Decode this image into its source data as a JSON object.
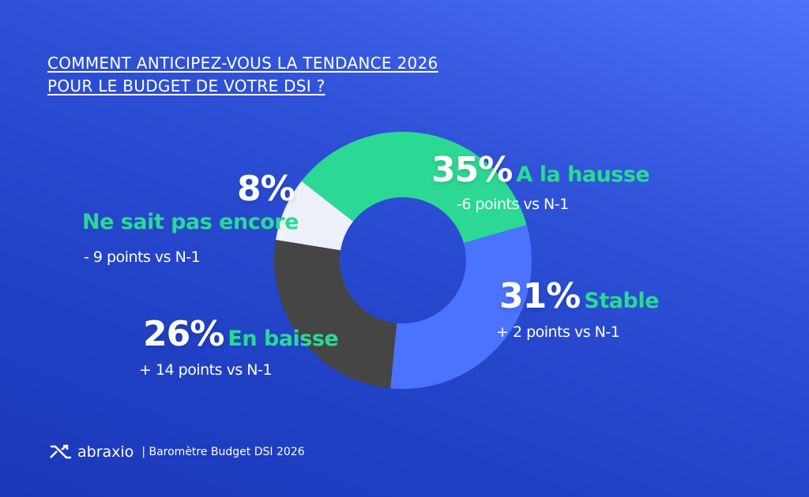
{
  "title": {
    "line1": "COMMENT ANTICIPEZ-VOUS LA TENDANCE 2026",
    "line2": "POUR LE BUDGET DE VOTRE DSI ?"
  },
  "chart_data": {
    "type": "pie",
    "donut": true,
    "slices": [
      {
        "label": "A la hausse",
        "value": 35,
        "value_label": "35%",
        "delta": "-6 points vs N-1",
        "color": "#2bd994"
      },
      {
        "label": "Stable",
        "value": 31,
        "value_label": "31%",
        "delta": "+ 2 points vs N-1",
        "color": "#4a73ff"
      },
      {
        "label": "En baisse",
        "value": 26,
        "value_label": "26%",
        "delta": "+ 14 points vs N-1",
        "color": "#454545"
      },
      {
        "label": "Ne sait pas encore",
        "value": 8,
        "value_label": "8%",
        "delta": "- 9 points vs N-1",
        "color": "#eef0fa"
      }
    ]
  },
  "footer": {
    "brand": "abraxio",
    "caption": "| Baromètre Budget DSI 2026"
  },
  "colors": {
    "accent": "#2bd994",
    "background": "#2a4bd0"
  }
}
